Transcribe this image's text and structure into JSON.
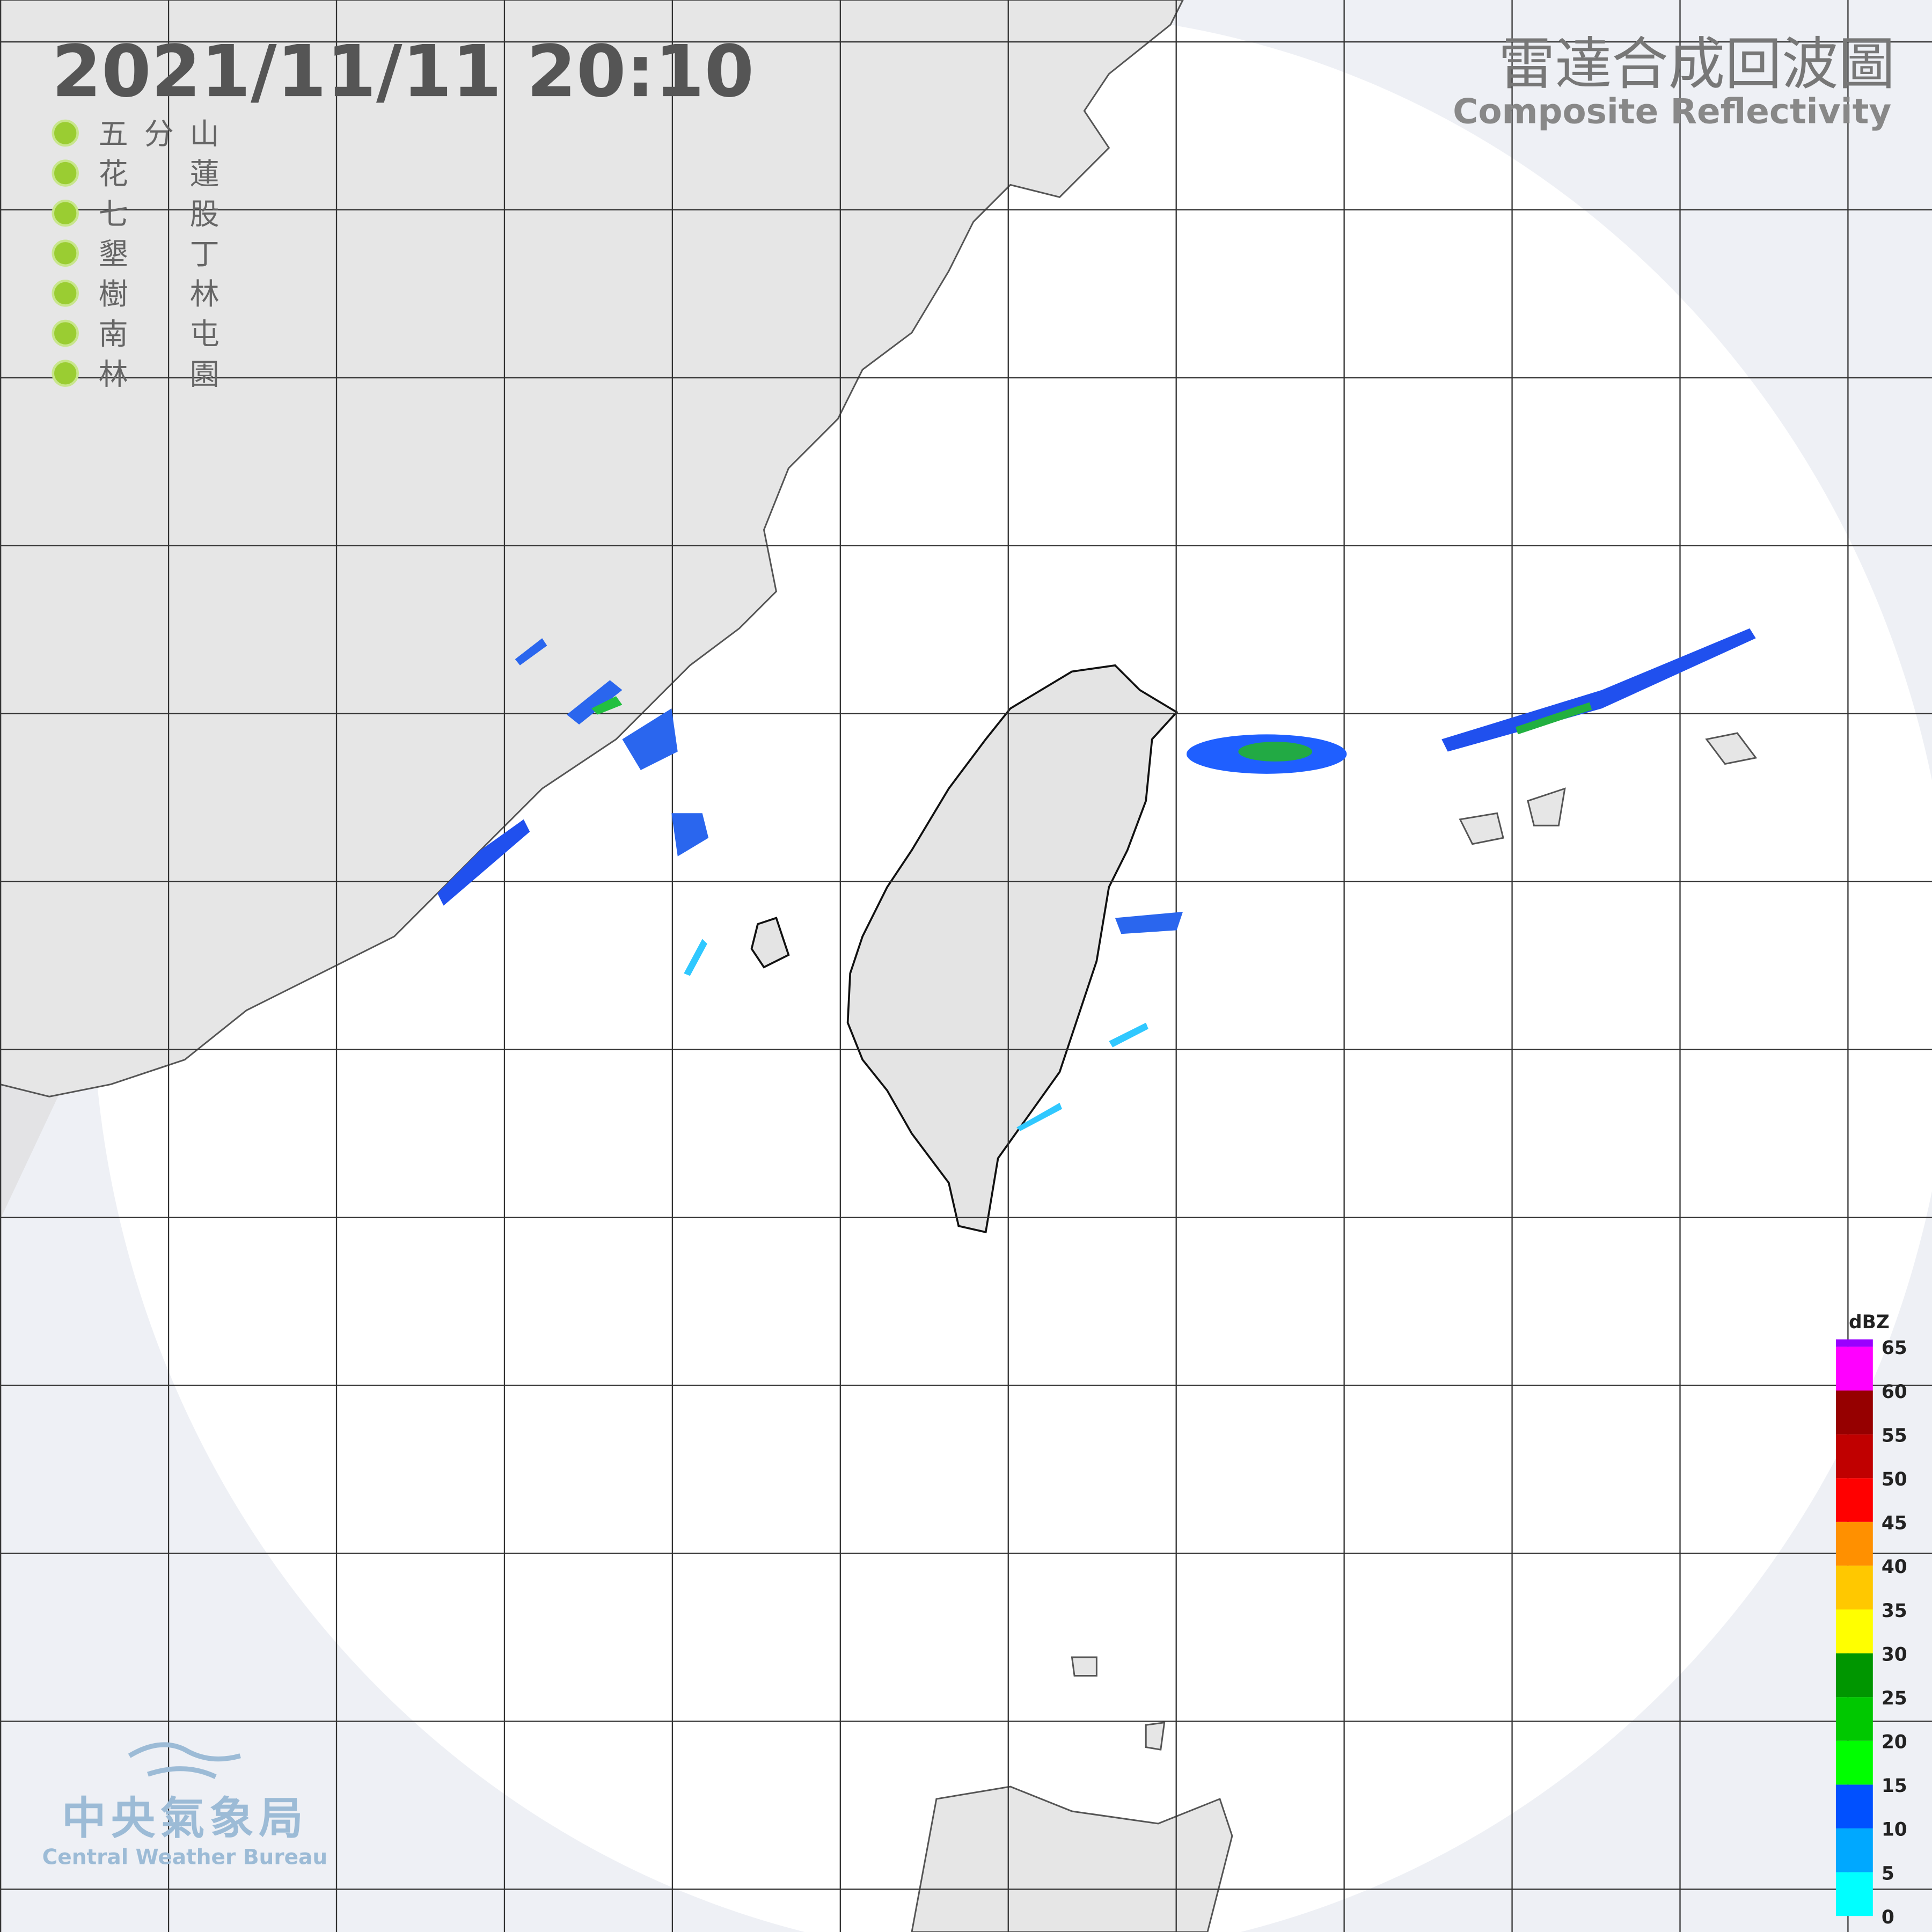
{
  "header": {
    "timestamp": "2021/11/11  20:10",
    "title": "雷達合成回波圖",
    "subtitle": "Composite Reflectivity"
  },
  "stations": [
    "五分山",
    "花蓮",
    "七股",
    "墾丁",
    "樹林",
    "南屯",
    "林園"
  ],
  "colorbar": {
    "label": "dBZ",
    "ticks": [
      0,
      5,
      10,
      15,
      20,
      25,
      30,
      35,
      40,
      45,
      50,
      55,
      60,
      65
    ],
    "colors": [
      "#00ffff",
      "#00a8ff",
      "#0050ff",
      "#00ff00",
      "#00c800",
      "#009600",
      "#ffff00",
      "#ffc800",
      "#ff9000",
      "#ff0000",
      "#c00000",
      "#960000",
      "#ff00ff",
      "#9900ff"
    ]
  },
  "logo": {
    "name": "中央氣象局",
    "english": "Central Weather Bureau"
  }
}
